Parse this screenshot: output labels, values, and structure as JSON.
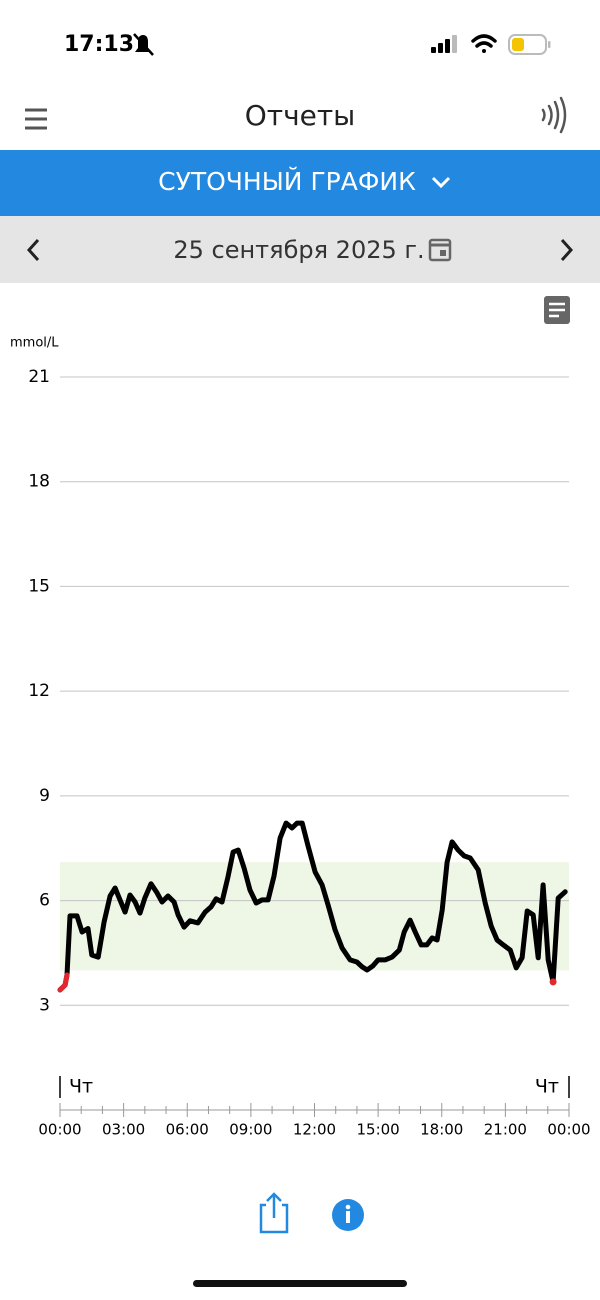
{
  "status_bar": {
    "time": "17:13"
  },
  "header": {
    "title": "Отчеты"
  },
  "report_selector": {
    "label": "СУТОЧНЫЙ ГРАФИК"
  },
  "date_bar": {
    "date": "25 сентября 2025 г."
  },
  "chart_data": {
    "type": "line",
    "y_label": "mmol/L",
    "day_labels": [
      "Чт",
      "Чт"
    ],
    "x": [
      0,
      0.24,
      0.33,
      0.47,
      0.8,
      1.04,
      1.32,
      1.5,
      1.8,
      2.08,
      2.36,
      2.6,
      2.83,
      3.07,
      3.3,
      3.54,
      3.77,
      4.0,
      4.29,
      4.58,
      4.81,
      5.09,
      5.38,
      5.57,
      5.85,
      6.13,
      6.5,
      6.84,
      7.12,
      7.36,
      7.64,
      7.92,
      8.16,
      8.4,
      8.68,
      8.96,
      9.25,
      9.53,
      9.81,
      10.09,
      10.38,
      10.66,
      10.94,
      11.18,
      11.42,
      11.7,
      12.03,
      12.36,
      12.64,
      12.97,
      13.3,
      13.68,
      14.0,
      14.25,
      14.48,
      14.76,
      15.0,
      15.33,
      15.66,
      16.0,
      16.23,
      16.51,
      16.75,
      17.03,
      17.3,
      17.55,
      17.78,
      18.02,
      18.25,
      18.49,
      18.77,
      19.06,
      19.34,
      19.72,
      20.05,
      20.33,
      20.61,
      20.9,
      21.23,
      21.51,
      21.79,
      22.03,
      22.31,
      22.55,
      22.78,
      23.02,
      23.25,
      23.49,
      23.82
    ],
    "series": [
      {
        "color": "#000000",
        "values": [
          3.44,
          3.58,
          3.87,
          5.56,
          5.56,
          5.1,
          5.2,
          4.44,
          4.38,
          5.39,
          6.13,
          6.36,
          6.02,
          5.67,
          6.16,
          5.96,
          5.64,
          6.07,
          6.48,
          6.22,
          5.96,
          6.13,
          5.96,
          5.59,
          5.24,
          5.42,
          5.36,
          5.67,
          5.82,
          6.05,
          5.96,
          6.68,
          7.39,
          7.45,
          6.93,
          6.3,
          5.93,
          6.02,
          6.02,
          6.7,
          7.79,
          8.22,
          8.08,
          8.22,
          8.22,
          7.56,
          6.82,
          6.45,
          5.87,
          5.16,
          4.64,
          4.3,
          4.24,
          4.1,
          4.01,
          4.13,
          4.3,
          4.3,
          4.38,
          4.58,
          5.1,
          5.44,
          5.1,
          4.73,
          4.73,
          4.93,
          4.87,
          5.73,
          7.1,
          7.68,
          7.45,
          7.28,
          7.22,
          6.88,
          5.93,
          5.27,
          4.87,
          4.73,
          4.58,
          4.07,
          4.36,
          5.7,
          5.59,
          4.36,
          6.45,
          4.3,
          3.67,
          6.07,
          6.25
        ]
      }
    ],
    "low_color": "#e0282e",
    "target_range": [
      4,
      7.1
    ],
    "target_color": "#eef6e6",
    "xlim": [
      0,
      24
    ],
    "ylim": [
      0,
      21
    ],
    "xticks": [
      {
        "value": 0,
        "label": "00:00"
      },
      {
        "value": 3,
        "label": "03:00"
      },
      {
        "value": 6,
        "label": "06:00"
      },
      {
        "value": 9,
        "label": "09:00"
      },
      {
        "value": 12,
        "label": "12:00"
      },
      {
        "value": 15,
        "label": "15:00"
      },
      {
        "value": 18,
        "label": "18:00"
      },
      {
        "value": 21,
        "label": "21:00"
      },
      {
        "value": 24,
        "label": "00:00"
      }
    ],
    "xminorticks": [
      1,
      2,
      4,
      5,
      7,
      8,
      10,
      11,
      13,
      14,
      16,
      17,
      19,
      20,
      22,
      23
    ],
    "yticks": [
      3,
      6,
      9,
      12,
      15,
      18,
      21
    ],
    "grid": true
  }
}
